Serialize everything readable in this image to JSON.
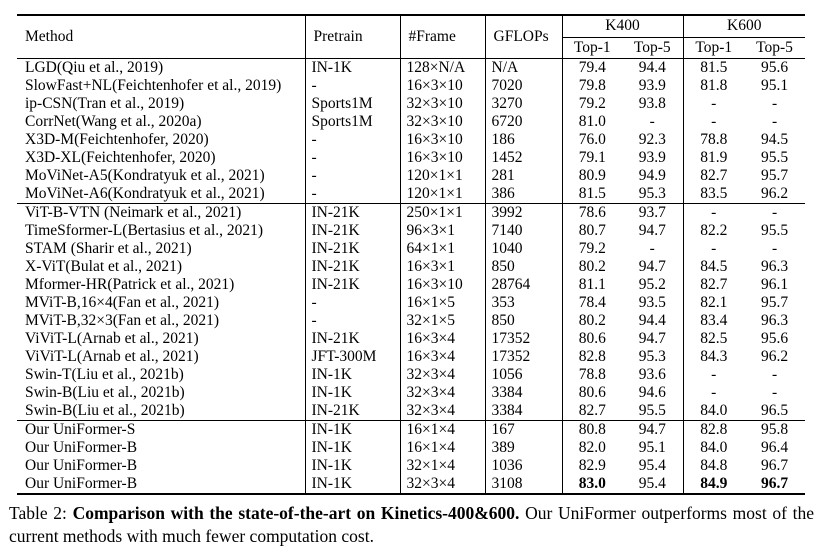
{
  "page": {
    "background_color": "#ffffff",
    "text_color": "#000000"
  },
  "table": {
    "columns": {
      "method": "Method",
      "pretrain": "Pretrain",
      "frame": "#Frame",
      "gflops": "GFLOPs",
      "k400": "K400",
      "k600": "K600",
      "top1": "Top-1",
      "top5": "Top-5"
    },
    "groups": [
      {
        "name": "cnn-methods",
        "rows": [
          {
            "method": "LGD(Qiu et al., 2019)",
            "pretrain": "IN-1K",
            "frame": "128×N/A",
            "gflops": "N/A",
            "k400_top1": "79.4",
            "k400_top5": "94.4",
            "k600_top1": "81.5",
            "k600_top5": "95.6"
          },
          {
            "method": "SlowFast+NL(Feichtenhofer et al., 2019)",
            "pretrain": "-",
            "frame": "16×3×10",
            "gflops": "7020",
            "k400_top1": "79.8",
            "k400_top5": "93.9",
            "k600_top1": "81.8",
            "k600_top5": "95.1"
          },
          {
            "method": "ip-CSN(Tran et al., 2019)",
            "pretrain": "Sports1M",
            "frame": "32×3×10",
            "gflops": "3270",
            "k400_top1": "79.2",
            "k400_top5": "93.8",
            "k600_top1": "-",
            "k600_top5": "-"
          },
          {
            "method": "CorrNet(Wang et al., 2020a)",
            "pretrain": "Sports1M",
            "frame": "32×3×10",
            "gflops": "6720",
            "k400_top1": "81.0",
            "k400_top5": "-",
            "k600_top1": "-",
            "k600_top5": "-"
          },
          {
            "method": "X3D-M(Feichtenhofer, 2020)",
            "pretrain": "-",
            "frame": "16×3×10",
            "gflops": "186",
            "k400_top1": "76.0",
            "k400_top5": "92.3",
            "k600_top1": "78.8",
            "k600_top5": "94.5"
          },
          {
            "method": "X3D-XL(Feichtenhofer, 2020)",
            "pretrain": "-",
            "frame": "16×3×10",
            "gflops": "1452",
            "k400_top1": "79.1",
            "k400_top5": "93.9",
            "k600_top1": "81.9",
            "k600_top5": "95.5"
          },
          {
            "method": "MoViNet-A5(Kondratyuk et al., 2021)",
            "pretrain": "-",
            "frame": "120×1×1",
            "gflops": "281",
            "k400_top1": "80.9",
            "k400_top5": "94.9",
            "k600_top1": "82.7",
            "k600_top5": "95.7"
          },
          {
            "method": "MoViNet-A6(Kondratyuk et al., 2021)",
            "pretrain": "-",
            "frame": "120×1×1",
            "gflops": "386",
            "k400_top1": "81.5",
            "k400_top5": "95.3",
            "k600_top1": "83.5",
            "k600_top5": "96.2"
          }
        ]
      },
      {
        "name": "transformer-methods",
        "rows": [
          {
            "method": "ViT-B-VTN (Neimark et al., 2021)",
            "pretrain": "IN-21K",
            "frame": "250×1×1",
            "gflops": "3992",
            "k400_top1": "78.6",
            "k400_top5": "93.7",
            "k600_top1": "-",
            "k600_top5": "-"
          },
          {
            "method": "TimeSformer-L(Bertasius et al., 2021)",
            "pretrain": "IN-21K",
            "frame": "96×3×1",
            "gflops": "7140",
            "k400_top1": "80.7",
            "k400_top5": "94.7",
            "k600_top1": "82.2",
            "k600_top5": "95.5"
          },
          {
            "method": "STAM (Sharir et al., 2021)",
            "pretrain": "IN-21K",
            "frame": "64×1×1",
            "gflops": "1040",
            "k400_top1": "79.2",
            "k400_top5": "-",
            "k600_top1": "-",
            "k600_top5": "-"
          },
          {
            "method": "X-ViT(Bulat et al., 2021)",
            "pretrain": "IN-21K",
            "frame": "16×3×1",
            "gflops": "850",
            "k400_top1": "80.2",
            "k400_top5": "94.7",
            "k600_top1": "84.5",
            "k600_top5": "96.3"
          },
          {
            "method": "Mformer-HR(Patrick et al., 2021)",
            "pretrain": "IN-21K",
            "frame": "16×3×10",
            "gflops": "28764",
            "k400_top1": "81.1",
            "k400_top5": "95.2",
            "k600_top1": "82.7",
            "k600_top5": "96.1"
          },
          {
            "method": "MViT-B,16×4(Fan et al., 2021)",
            "pretrain": "-",
            "frame": "16×1×5",
            "gflops": "353",
            "k400_top1": "78.4",
            "k400_top5": "93.5",
            "k600_top1": "82.1",
            "k600_top5": "95.7"
          },
          {
            "method": "MViT-B,32×3(Fan et al., 2021)",
            "pretrain": "-",
            "frame": "32×1×5",
            "gflops": "850",
            "k400_top1": "80.2",
            "k400_top5": "94.4",
            "k600_top1": "83.4",
            "k600_top5": "96.3"
          },
          {
            "method": "ViViT-L(Arnab et al., 2021)",
            "pretrain": "IN-21K",
            "frame": "16×3×4",
            "gflops": "17352",
            "k400_top1": "80.6",
            "k400_top5": "94.7",
            "k600_top1": "82.5",
            "k600_top5": "95.6"
          },
          {
            "method": "ViViT-L(Arnab et al., 2021)",
            "pretrain": "JFT-300M",
            "frame": "16×3×4",
            "gflops": "17352",
            "k400_top1": "82.8",
            "k400_top5": "95.3",
            "k600_top1": "84.3",
            "k600_top5": "96.2"
          },
          {
            "method": "Swin-T(Liu et al., 2021b)",
            "pretrain": "IN-1K",
            "frame": "32×3×4",
            "gflops": "1056",
            "k400_top1": "78.8",
            "k400_top5": "93.6",
            "k600_top1": "-",
            "k600_top5": "-"
          },
          {
            "method": "Swin-B(Liu et al., 2021b)",
            "pretrain": "IN-1K",
            "frame": "32×3×4",
            "gflops": "3384",
            "k400_top1": "80.6",
            "k400_top5": "94.6",
            "k600_top1": "-",
            "k600_top5": "-"
          },
          {
            "method": "Swin-B(Liu et al., 2021b)",
            "pretrain": "IN-21K",
            "frame": "32×3×4",
            "gflops": "3384",
            "k400_top1": "82.7",
            "k400_top5": "95.5",
            "k600_top1": "84.0",
            "k600_top5": "96.5"
          }
        ]
      },
      {
        "name": "uniformer-methods",
        "rows": [
          {
            "method": "Our UniFormer-S",
            "pretrain": "IN-1K",
            "frame": "16×1×4",
            "gflops": "167",
            "k400_top1": "80.8",
            "k400_top5": "94.7",
            "k600_top1": "82.8",
            "k600_top5": "95.8"
          },
          {
            "method": "Our UniFormer-B",
            "pretrain": "IN-1K",
            "frame": "16×1×4",
            "gflops": "389",
            "k400_top1": "82.0",
            "k400_top5": "95.1",
            "k600_top1": "84.0",
            "k600_top5": "96.4"
          },
          {
            "method": "Our UniFormer-B",
            "pretrain": "IN-1K",
            "frame": "32×1×4",
            "gflops": "1036",
            "k400_top1": "82.9",
            "k400_top5": "95.4",
            "k600_top1": "84.8",
            "k600_top5": "96.7"
          },
          {
            "method": "Our UniFormer-B",
            "pretrain": "IN-1K",
            "frame": "32×3×4",
            "gflops": "3108",
            "k400_top1": "83.0",
            "k400_top5": "95.4",
            "k600_top1": "84.9",
            "k600_top5": "96.7",
            "bold": [
              "k400_top1",
              "k600_top1",
              "k600_top5"
            ]
          }
        ]
      }
    ]
  },
  "caption": {
    "prefix": "Table 2: ",
    "bold": "Comparison with the state-of-the-art on Kinetics-400&600.",
    "rest": " Our UniFormer outperforms most of the current methods with much fewer computation cost."
  }
}
